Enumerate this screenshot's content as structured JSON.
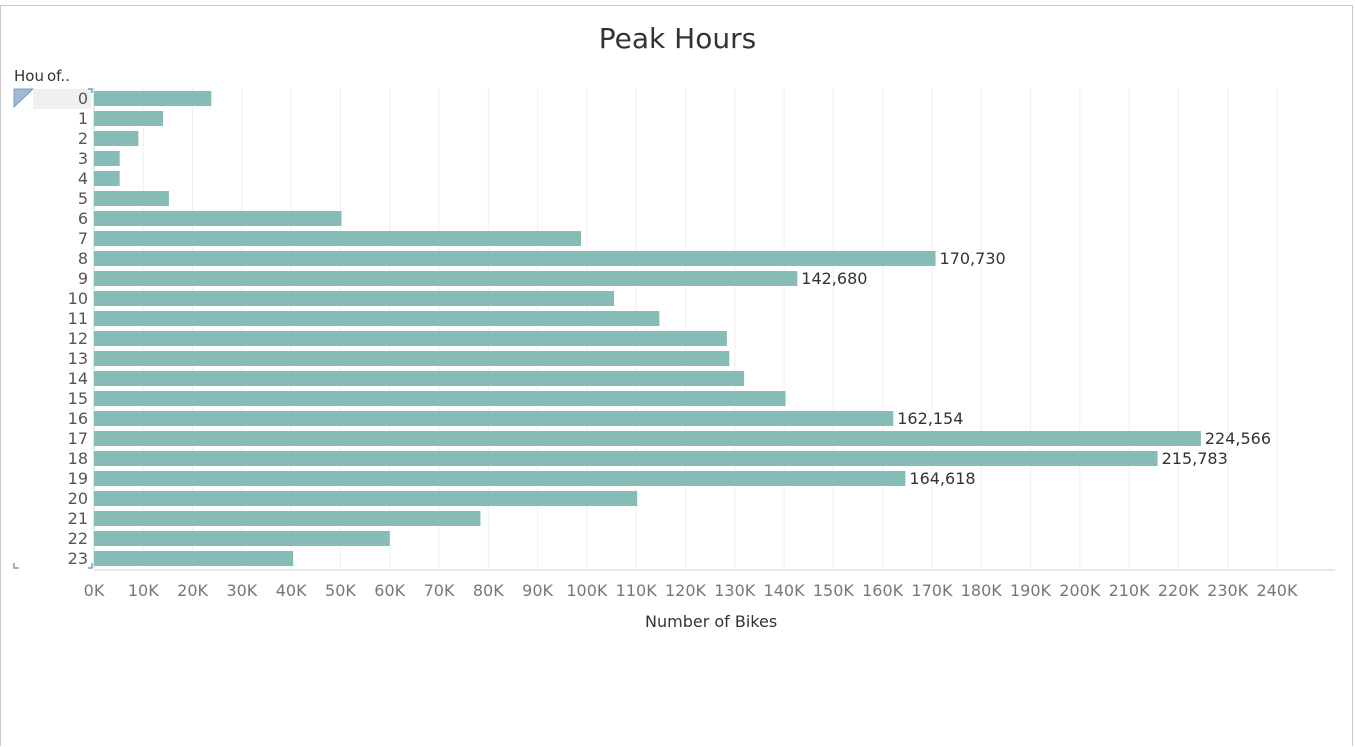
{
  "chart_data": {
    "type": "bar",
    "orientation": "horizontal",
    "title": "Peak Hours",
    "ylabel": "Hou of..",
    "xlabel": "Number of Bikes",
    "categories": [
      "0",
      "1",
      "2",
      "3",
      "4",
      "5",
      "6",
      "7",
      "8",
      "9",
      "10",
      "11",
      "12",
      "13",
      "14",
      "15",
      "16",
      "17",
      "18",
      "19",
      "20",
      "21",
      "22",
      "23"
    ],
    "values": [
      23800,
      14000,
      9000,
      5200,
      5200,
      15200,
      50200,
      98800,
      170730,
      142680,
      105500,
      114700,
      128400,
      128900,
      131900,
      140300,
      162154,
      224566,
      215783,
      164618,
      110200,
      78400,
      60000,
      40400
    ],
    "data_labels": {
      "8": "170,730",
      "9": "142,680",
      "16": "162,154",
      "17": "224,566",
      "18": "215,783",
      "19": "164,618"
    },
    "xticks": [
      0,
      10000,
      20000,
      30000,
      40000,
      50000,
      60000,
      70000,
      80000,
      90000,
      100000,
      110000,
      120000,
      130000,
      140000,
      150000,
      160000,
      170000,
      180000,
      190000,
      200000,
      210000,
      220000,
      230000,
      240000
    ],
    "xtick_labels": [
      "0K",
      "10K",
      "20K",
      "30K",
      "40K",
      "50K",
      "60K",
      "70K",
      "80K",
      "90K",
      "100K",
      "110K",
      "120K",
      "130K",
      "140K",
      "150K",
      "160K",
      "170K",
      "180K",
      "190K",
      "200K",
      "210K",
      "220K",
      "230K",
      "240K"
    ],
    "xlim": [
      0,
      250000
    ],
    "grid": true,
    "colors": {
      "bar": "#86bcb6",
      "grid": "#eeeeee",
      "axis": "#d0d0d0"
    }
  }
}
